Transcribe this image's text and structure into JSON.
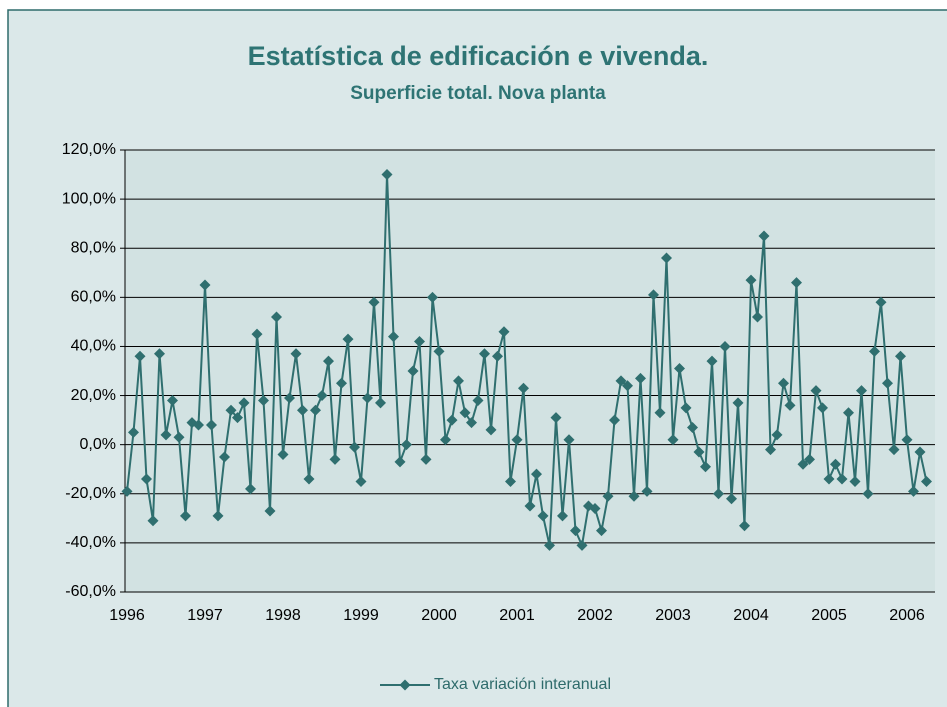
{
  "chart_data": {
    "type": "line",
    "title": "Estatística de edificación e vivenda.",
    "subtitle": "Superficie total. Nova planta",
    "categories": [
      "1996",
      null,
      null,
      null,
      null,
      null,
      null,
      null,
      null,
      null,
      null,
      null,
      "1997",
      null,
      null,
      null,
      null,
      null,
      null,
      null,
      null,
      null,
      null,
      null,
      "1998",
      null,
      null,
      null,
      null,
      null,
      null,
      null,
      null,
      null,
      null,
      null,
      "1999",
      null,
      null,
      null,
      null,
      null,
      null,
      null,
      null,
      null,
      null,
      null,
      "2000",
      null,
      null,
      null,
      null,
      null,
      null,
      null,
      null,
      null,
      null,
      null,
      "2001",
      null,
      null,
      null,
      null,
      null,
      null,
      null,
      null,
      null,
      null,
      null,
      "2002",
      null,
      null,
      null,
      null,
      null,
      null,
      null,
      null,
      null,
      null,
      null,
      "2003",
      null,
      null,
      null,
      null,
      null,
      null,
      null,
      null,
      null,
      null,
      null,
      "2004",
      null,
      null,
      null,
      null,
      null,
      null,
      null,
      null,
      null,
      null,
      null,
      "2005",
      null,
      null,
      null,
      null,
      null,
      null,
      null,
      null,
      null,
      null,
      null,
      "2006",
      null,
      null,
      null
    ],
    "series": [
      {
        "name": "Taxa variación interanual",
        "color": "#2f6f6f",
        "values": [
          -19,
          5,
          36,
          -14,
          -31,
          37,
          4,
          18,
          3,
          -29,
          9,
          8,
          65,
          8,
          -29,
          -5,
          14,
          11,
          17,
          -18,
          45,
          18,
          -27,
          52,
          -4,
          19,
          37,
          14,
          -14,
          14,
          20,
          34,
          -6,
          25,
          43,
          -1,
          -15,
          19,
          58,
          17,
          110,
          44,
          -7,
          0,
          30,
          42,
          -6,
          60,
          38,
          2,
          10,
          26,
          13,
          9,
          18,
          37,
          6,
          36,
          46,
          -15,
          2,
          23,
          -25,
          -12,
          -29,
          -41,
          11,
          -29,
          2,
          -35,
          -41,
          -25,
          -26,
          -35,
          -21,
          10,
          26,
          24,
          -21,
          27,
          -19,
          61,
          13,
          76,
          2,
          31,
          15,
          7,
          -3,
          -9,
          34,
          -20,
          40,
          -22,
          17,
          -33,
          67,
          52,
          85,
          -2,
          4,
          25,
          16,
          66,
          -8,
          -6,
          22,
          15,
          -14,
          -8,
          -14,
          13,
          -15,
          22,
          -20,
          38,
          58,
          25,
          -2,
          36,
          2,
          -19,
          -3,
          -15
        ]
      }
    ],
    "ylim": [
      -60,
      120
    ],
    "yticks": [
      {
        "value": -60,
        "label": "-60,0%"
      },
      {
        "value": -40,
        "label": "-40,0%"
      },
      {
        "value": -20,
        "label": "-20,0%"
      },
      {
        "value": 0,
        "label": "0,0%"
      },
      {
        "value": 20,
        "label": "20,0%"
      },
      {
        "value": 40,
        "label": "40,0%"
      },
      {
        "value": 60,
        "label": "60,0%"
      },
      {
        "value": 80,
        "label": "80,0%"
      },
      {
        "value": 100,
        "label": "100,0%"
      },
      {
        "value": 120,
        "label": "120,0%"
      }
    ],
    "grid": true,
    "legend": "bottom"
  }
}
